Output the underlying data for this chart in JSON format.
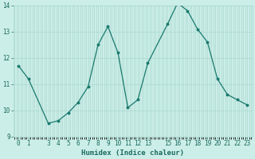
{
  "x": [
    0,
    1,
    3,
    4,
    5,
    6,
    7,
    8,
    9,
    10,
    11,
    12,
    13,
    15,
    16,
    17,
    18,
    19,
    20,
    21,
    22,
    23
  ],
  "y": [
    11.7,
    11.2,
    9.5,
    9.6,
    9.9,
    10.3,
    10.9,
    12.5,
    13.2,
    12.2,
    10.1,
    10.4,
    11.8,
    13.3,
    14.1,
    13.8,
    13.1,
    12.6,
    11.2,
    10.6,
    10.4,
    10.2
  ],
  "line_color": "#1a7a6e",
  "marker_color": "#1a7a6e",
  "bg_color": "#cceee8",
  "grid_color": "#aad8d0",
  "xlabel": "Humidex (Indice chaleur)",
  "ylim": [
    9,
    14
  ],
  "yticks": [
    9,
    10,
    11,
    12,
    13,
    14
  ],
  "xticks": [
    0,
    1,
    3,
    4,
    5,
    6,
    7,
    8,
    9,
    10,
    11,
    12,
    13,
    15,
    16,
    17,
    18,
    19,
    20,
    21,
    22,
    23
  ],
  "xtick_labels": [
    "0",
    "1",
    "3",
    "4",
    "5",
    "6",
    "7",
    "8",
    "9",
    "10",
    "11",
    "12",
    "13",
    "15",
    "16",
    "17",
    "18",
    "19",
    "20",
    "21",
    "22",
    "23"
  ],
  "font_color": "#1a6b60",
  "axis_fontsize": 6.5,
  "tick_fontsize": 5.5
}
